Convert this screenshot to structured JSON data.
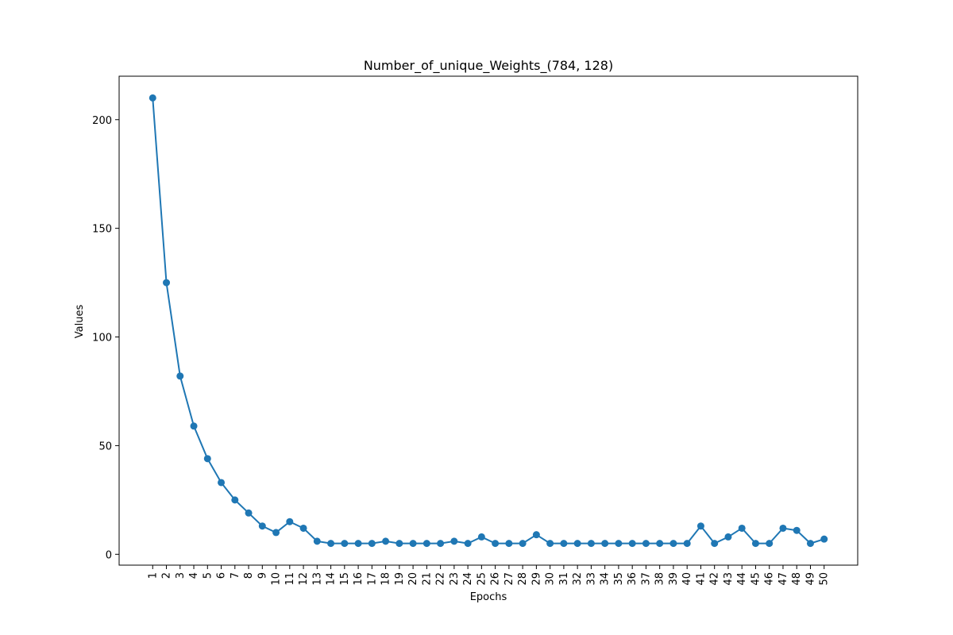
{
  "chart_data": {
    "type": "line",
    "title": "Number_of_unique_Weights_(784, 128)",
    "xlabel": "Epochs",
    "ylabel": "Values",
    "x": [
      1,
      2,
      3,
      4,
      5,
      6,
      7,
      8,
      9,
      10,
      11,
      12,
      13,
      14,
      15,
      16,
      17,
      18,
      19,
      20,
      21,
      22,
      23,
      24,
      25,
      26,
      27,
      28,
      29,
      30,
      31,
      32,
      33,
      34,
      35,
      36,
      37,
      38,
      39,
      40,
      41,
      42,
      43,
      44,
      45,
      46,
      47,
      48,
      49,
      50
    ],
    "y_ticks": [
      0,
      50,
      100,
      150,
      200
    ],
    "ylim": [
      -5,
      220
    ],
    "grid": false,
    "series": [
      {
        "color": "#1f77b4",
        "marker": "circle",
        "values": [
          210,
          125,
          82,
          59,
          44,
          33,
          25,
          19,
          13,
          10,
          15,
          12,
          6,
          5,
          5,
          5,
          5,
          6,
          5,
          5,
          5,
          5,
          6,
          5,
          8,
          5,
          5,
          5,
          9,
          5,
          5,
          5,
          5,
          5,
          5,
          5,
          5,
          5,
          5,
          5,
          13,
          5,
          8,
          12,
          5,
          5,
          12,
          11,
          5,
          7
        ]
      }
    ]
  }
}
